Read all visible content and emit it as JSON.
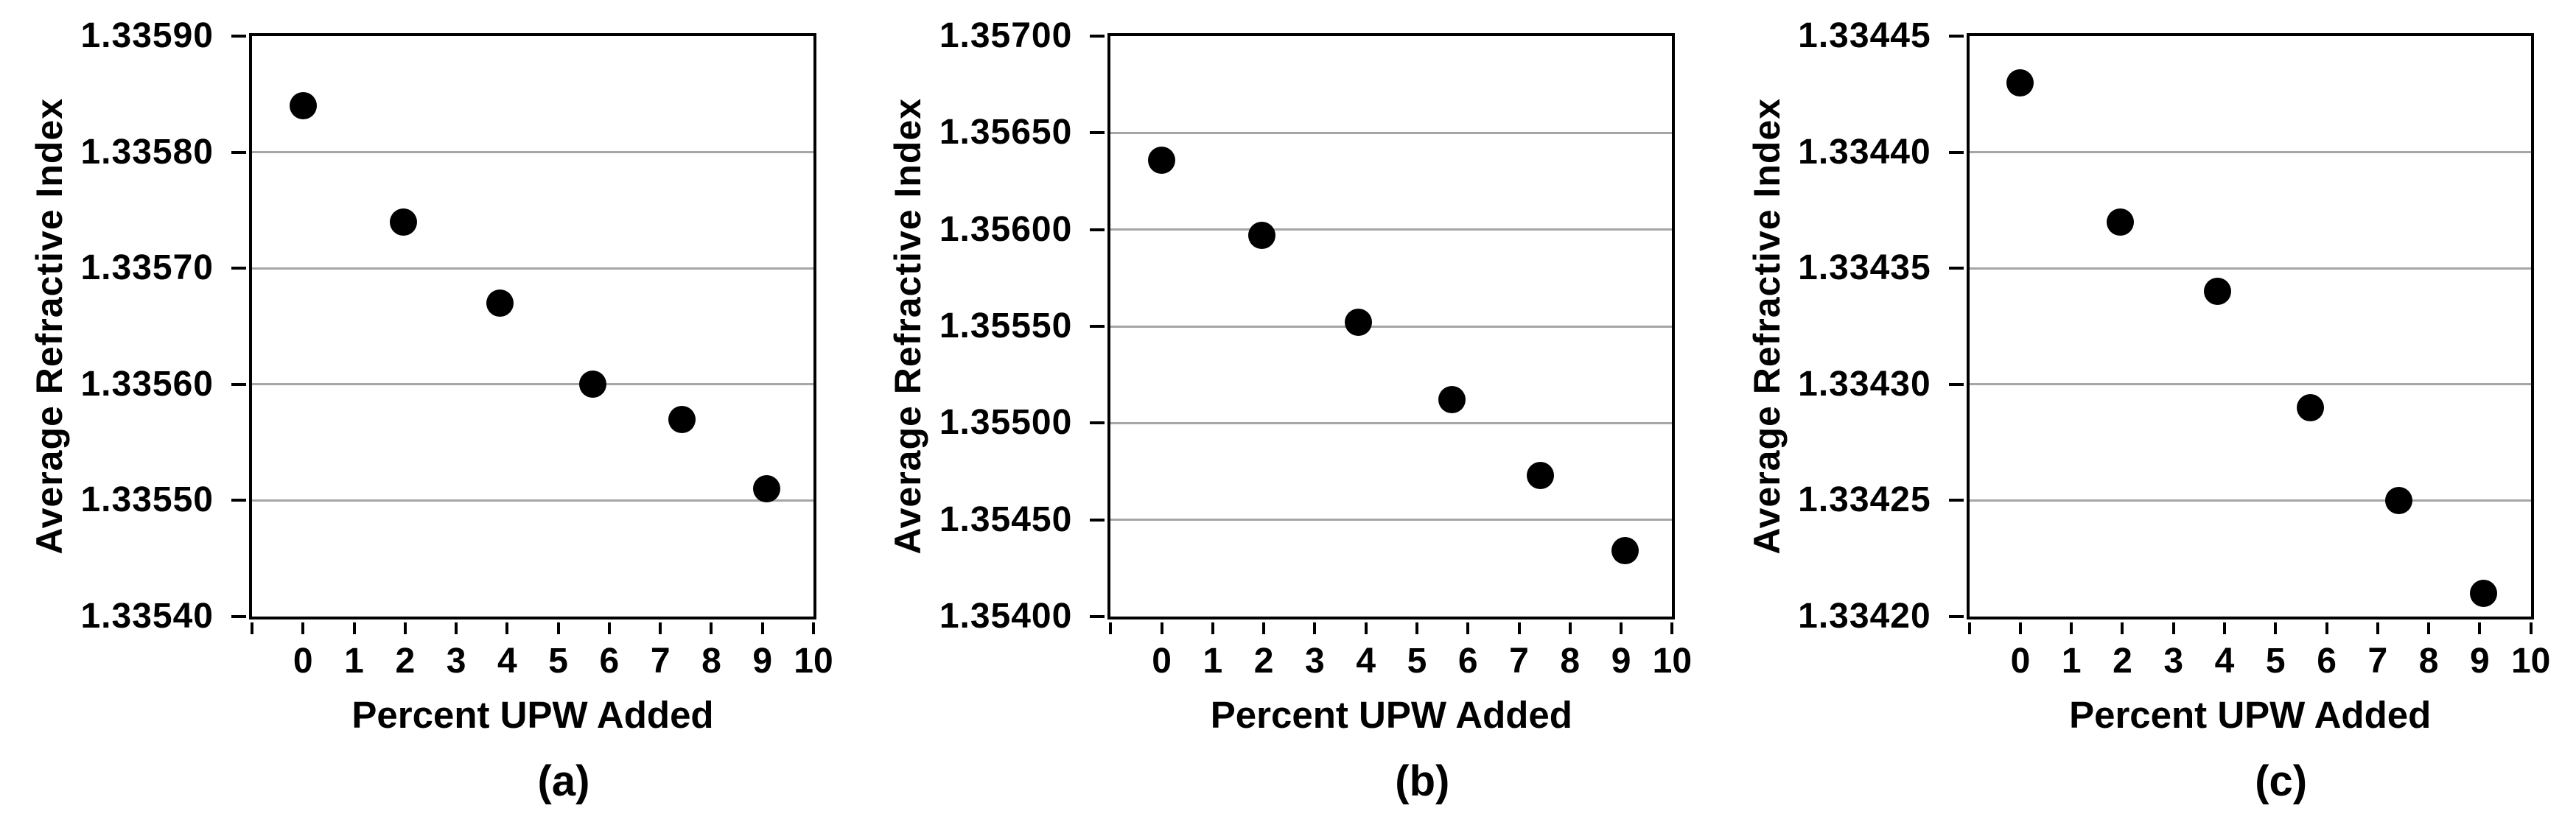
{
  "figure": {
    "background_color": "#ffffff",
    "grid_color": "#a6a6a6",
    "axis_color": "#000000",
    "point_color": "#000000",
    "text_color": "#000000"
  },
  "chart_data": [
    {
      "type": "scatter",
      "panel_label": "(a)",
      "xlabel": "Percent UPW Added",
      "ylabel": "Average Refractive Index",
      "x": [
        0,
        1.96,
        3.86,
        5.68,
        7.42,
        9.08
      ],
      "y": [
        1.33584,
        1.33574,
        1.33567,
        1.3356,
        1.33557,
        1.33551
      ],
      "xlim": [
        -1,
        10
      ],
      "ylim": [
        1.3354,
        1.3359
      ],
      "x_ticks": [
        0,
        1,
        2,
        3,
        4,
        5,
        6,
        7,
        8,
        9,
        10
      ],
      "x_tick_labels": [
        "0",
        "1",
        "2",
        "3",
        "4",
        "5",
        "6",
        "7",
        "8",
        "9",
        "10"
      ],
      "y_ticks": [
        1.3354,
        1.3355,
        1.3356,
        1.3357,
        1.3358,
        1.3359
      ],
      "y_tick_labels": [
        "1.33540",
        "1.33550",
        "1.33560",
        "1.33570",
        "1.33580",
        "1.33590"
      ],
      "grid": true,
      "legend": false,
      "marker": "filled-circle"
    },
    {
      "type": "scatter",
      "panel_label": "(b)",
      "xlabel": "Percent UPW Added",
      "ylabel": "Average Refractive Index",
      "x": [
        0,
        1.96,
        3.86,
        5.68,
        7.42,
        9.08
      ],
      "y": [
        1.35636,
        1.35597,
        1.35552,
        1.35512,
        1.35473,
        1.35434
      ],
      "xlim": [
        -1,
        10
      ],
      "ylim": [
        1.354,
        1.357
      ],
      "x_ticks": [
        0,
        1,
        2,
        3,
        4,
        5,
        6,
        7,
        8,
        9,
        10
      ],
      "x_tick_labels": [
        "0",
        "1",
        "2",
        "3",
        "4",
        "5",
        "6",
        "7",
        "8",
        "9",
        "10"
      ],
      "y_ticks": [
        1.354,
        1.3545,
        1.355,
        1.3555,
        1.356,
        1.3565,
        1.357
      ],
      "y_tick_labels": [
        "1.35400",
        "1.35450",
        "1.35500",
        "1.35550",
        "1.35600",
        "1.35650",
        "1.35700"
      ],
      "grid": true,
      "legend": false,
      "marker": "filled-circle"
    },
    {
      "type": "scatter",
      "panel_label": "(c)",
      "xlabel": "Percent UPW Added",
      "ylabel": "Average Refractive Index",
      "x": [
        0,
        1.96,
        3.86,
        5.68,
        7.42,
        9.08
      ],
      "y": [
        1.33443,
        1.33437,
        1.33434,
        1.33429,
        1.33425,
        1.33421
      ],
      "xlim": [
        -1,
        10
      ],
      "ylim": [
        1.3342,
        1.33445
      ],
      "x_ticks": [
        0,
        1,
        2,
        3,
        4,
        5,
        6,
        7,
        8,
        9,
        10
      ],
      "x_tick_labels": [
        "0",
        "1",
        "2",
        "3",
        "4",
        "5",
        "6",
        "7",
        "8",
        "9",
        "10"
      ],
      "y_ticks": [
        1.3342,
        1.33425,
        1.3343,
        1.33435,
        1.3344,
        1.33445
      ],
      "y_tick_labels": [
        "1.33420",
        "1.33425",
        "1.33430",
        "1.33435",
        "1.33440",
        "1.33445"
      ],
      "grid": true,
      "legend": false,
      "marker": "filled-circle"
    }
  ]
}
